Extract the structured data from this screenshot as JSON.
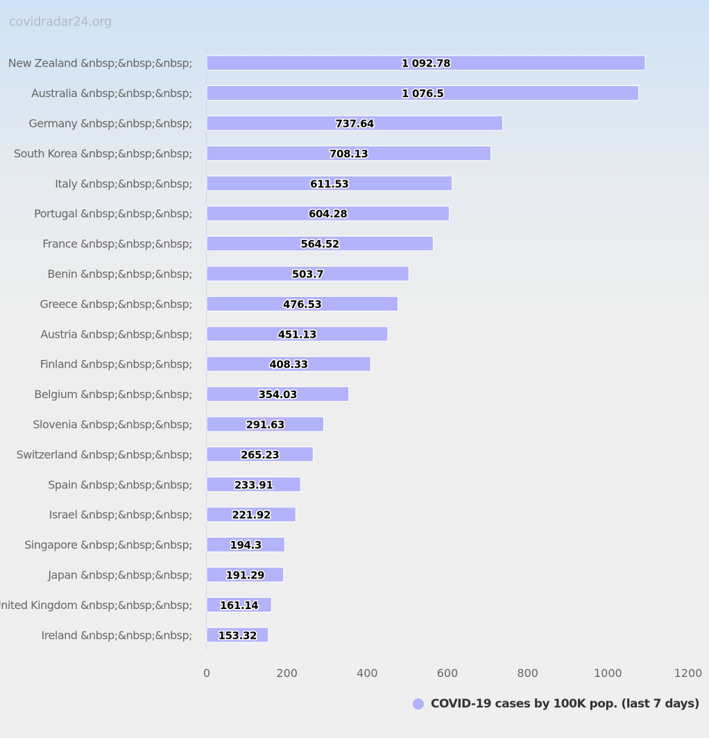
{
  "credit": "covidradar24.org",
  "colors": {
    "bar": "#b3b3fb",
    "bar_stroke": "#ffffff",
    "axis_label": "#666666"
  },
  "chart_data": {
    "type": "bar",
    "orientation": "horizontal",
    "categories": [
      "New Zealand &nbsp;&nbsp;&nbsp;",
      "Australia &nbsp;&nbsp;&nbsp;",
      "Germany &nbsp;&nbsp;&nbsp;",
      "South Korea &nbsp;&nbsp;&nbsp;",
      "Italy &nbsp;&nbsp;&nbsp;",
      "Portugal &nbsp;&nbsp;&nbsp;",
      "France &nbsp;&nbsp;&nbsp;",
      "Benin &nbsp;&nbsp;&nbsp;",
      "Greece &nbsp;&nbsp;&nbsp;",
      "Austria &nbsp;&nbsp;&nbsp;",
      "Finland &nbsp;&nbsp;&nbsp;",
      "Belgium &nbsp;&nbsp;&nbsp;",
      "Slovenia &nbsp;&nbsp;&nbsp;",
      "Switzerland &nbsp;&nbsp;&nbsp;",
      "Spain &nbsp;&nbsp;&nbsp;",
      "Israel &nbsp;&nbsp;&nbsp;",
      "Singapore &nbsp;&nbsp;&nbsp;",
      "Japan &nbsp;&nbsp;&nbsp;",
      "United Kingdom &nbsp;&nbsp;&nbsp;",
      "Ireland &nbsp;&nbsp;&nbsp;"
    ],
    "series": [
      {
        "name": "COVID-19 cases by 100K pop. (last 7 days)",
        "values": [
          1092.78,
          1076.5,
          737.64,
          708.13,
          611.53,
          604.28,
          564.52,
          503.7,
          476.53,
          451.13,
          408.33,
          354.03,
          291.63,
          265.23,
          233.91,
          221.92,
          194.3,
          191.29,
          161.14,
          153.32
        ],
        "data_labels": [
          "1 092.78",
          "1 076.5",
          "737.64",
          "708.13",
          "611.53",
          "604.28",
          "564.52",
          "503.7",
          "476.53",
          "451.13",
          "408.33",
          "354.03",
          "291.63",
          "265.23",
          "233.91",
          "221.92",
          "194.3",
          "191.29",
          "161.14",
          "153.32"
        ]
      }
    ],
    "xlim": [
      0,
      1200
    ],
    "x_ticks": [
      0,
      200,
      400,
      600,
      800,
      1000,
      1200
    ],
    "grid": false,
    "legend_position": "bottom-right"
  }
}
